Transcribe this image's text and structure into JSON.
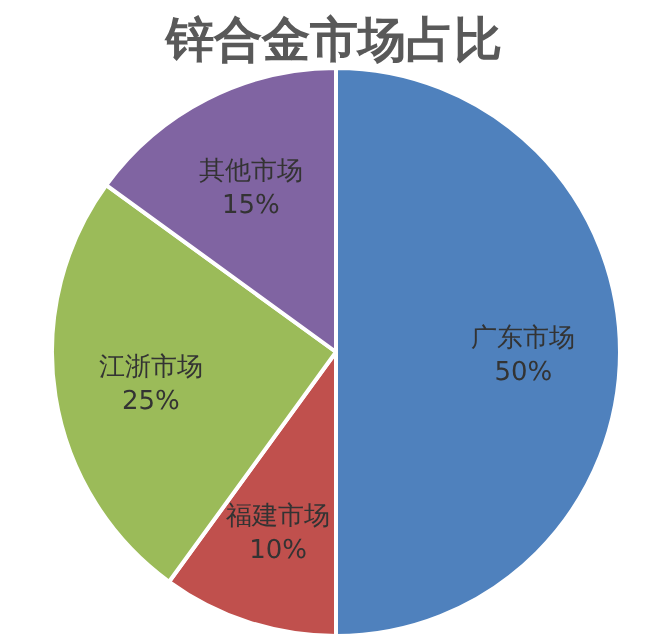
{
  "chart_data": {
    "type": "pie",
    "title": "锌合金市场占比",
    "categories": [
      "广东市场",
      "福建市场",
      "江浙市场",
      "其他市场"
    ],
    "values": [
      50,
      10,
      25,
      15
    ],
    "colors": [
      "#4f81bd",
      "#c0504d",
      "#9bbb59",
      "#8064a2"
    ],
    "value_labels": [
      "50%",
      "10%",
      "25%",
      "15%"
    ]
  }
}
